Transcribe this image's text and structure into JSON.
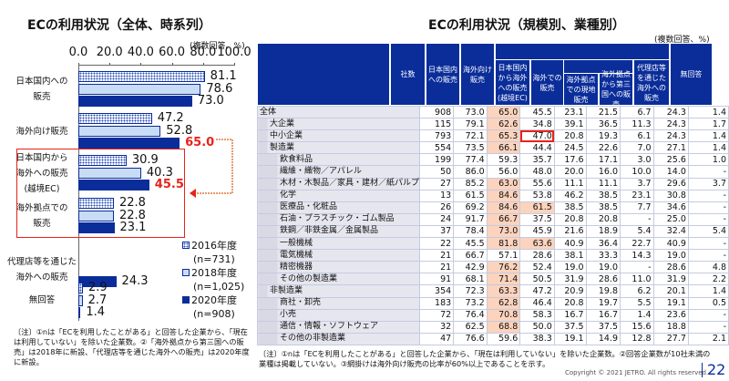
{
  "chart_data": {
    "type": "bar",
    "orientation": "horizontal",
    "title": "ECの利用状況（全体、時系列）",
    "unit_note": "(複数回答、%)",
    "xlim": [
      0,
      100
    ],
    "ticks": [
      "0.0",
      "20.0",
      "40.0",
      "60.0",
      "80.0",
      "100.0"
    ],
    "categories": [
      [
        "日本国内への",
        "販売"
      ],
      [
        "海外向け販売"
      ],
      [
        "日本国内から",
        "海外への販売",
        "(越境EC)"
      ],
      [
        "海外拠点での",
        "販売"
      ],
      [
        "代理店等を通じた",
        "海外への販売"
      ],
      [
        "無回答"
      ]
    ],
    "series": [
      {
        "name": "2016年度",
        "n": "(n=731)",
        "values": [
          81.1,
          47.2,
          30.9,
          22.8,
          null,
          2.9
        ]
      },
      {
        "name": "2018年度",
        "n": "(n=1,025)",
        "values": [
          78.6,
          52.8,
          40.3,
          22.8,
          null,
          2.7
        ]
      },
      {
        "name": "2020年度",
        "n": "(n=908)",
        "values": [
          73.0,
          65.0,
          45.5,
          23.1,
          24.3,
          1.4
        ]
      }
    ],
    "highlight_labels": [
      "65.0",
      "45.5"
    ],
    "colors": {
      "s2016": "#ffffff",
      "s2018": "#c9dcf6",
      "s2020": "#0a2d9a",
      "highlight": "#e8231a"
    }
  },
  "left_note": "〔注〕①nは「ECを利用したことがある」と回答した企業から、「現在は利用していない」を除いた企業数。②「海外拠点から第三国への販売」は2018年に新設、「代理店等を通じた海外への販売」は2020年度に新設。",
  "table": {
    "title": "ECの利用状況（規模別、業種別）",
    "unit_note": "(複数回答、%)",
    "headers": {
      "count": "社数",
      "domestic": "日本国内への販売",
      "overseas": "海外向け販売",
      "crossborder": "日本国内から海外への販売(越境EC)",
      "abroad": "海外での販売",
      "local": "海外拠点での現地販売",
      "third": "海外拠点から第三国への販売",
      "agent": "代理店等を通じた海外への販売",
      "none": "無回答"
    },
    "rows": [
      {
        "label": "全体",
        "level": 0,
        "v": [
          "908",
          "73.0",
          "65.0",
          "45.5",
          "23.1",
          "21.5",
          "6.7",
          "24.3",
          "1.4"
        ]
      },
      {
        "label": "大企業",
        "level": 1,
        "v": [
          "115",
          "79.1",
          "62.6",
          "34.8",
          "39.1",
          "36.5",
          "11.3",
          "24.3",
          "1.7"
        ]
      },
      {
        "label": "中小企業",
        "level": 1,
        "v": [
          "793",
          "72.1",
          "65.3",
          "47.0",
          "20.8",
          "19.3",
          "6.1",
          "24.3",
          "1.4"
        ],
        "boxed": 3
      },
      {
        "label": "製造業",
        "level": 1,
        "v": [
          "554",
          "73.5",
          "66.1",
          "44.4",
          "24.5",
          "22.6",
          "7.0",
          "27.1",
          "1.4"
        ]
      },
      {
        "label": "飲食料品",
        "level": 2,
        "v": [
          "199",
          "77.4",
          "59.3",
          "35.7",
          "17.6",
          "17.1",
          "3.0",
          "25.6",
          "1.0"
        ]
      },
      {
        "label": "繊維・織物／アパレル",
        "level": 2,
        "v": [
          "50",
          "86.0",
          "56.0",
          "48.0",
          "20.0",
          "16.0",
          "10.0",
          "14.0",
          "-"
        ]
      },
      {
        "label": "木材・木製品／家具・建材／紙パルプ",
        "level": 2,
        "v": [
          "27",
          "85.2",
          "63.0",
          "55.6",
          "11.1",
          "11.1",
          "3.7",
          "29.6",
          "3.7"
        ]
      },
      {
        "label": "化学",
        "level": 2,
        "v": [
          "13",
          "61.5",
          "84.6",
          "53.8",
          "46.2",
          "38.5",
          "23.1",
          "30.8",
          "-"
        ]
      },
      {
        "label": "医療品・化粧品",
        "level": 2,
        "v": [
          "26",
          "69.2",
          "84.6",
          "61.5",
          "38.5",
          "38.5",
          "7.7",
          "34.6",
          "-"
        ]
      },
      {
        "label": "石油・プラスチック・ゴム製品",
        "level": 2,
        "v": [
          "24",
          "91.7",
          "66.7",
          "37.5",
          "20.8",
          "20.8",
          "-",
          "25.0",
          "-"
        ]
      },
      {
        "label": "鉄鋼／非鉄金属／金属製品",
        "level": 2,
        "v": [
          "37",
          "78.4",
          "73.0",
          "45.9",
          "21.6",
          "18.9",
          "5.4",
          "32.4",
          "5.4"
        ]
      },
      {
        "label": "一般機械",
        "level": 2,
        "v": [
          "22",
          "45.5",
          "81.8",
          "63.6",
          "40.9",
          "36.4",
          "22.7",
          "40.9",
          "-"
        ]
      },
      {
        "label": "電気機械",
        "level": 2,
        "v": [
          "21",
          "66.7",
          "57.1",
          "28.6",
          "38.1",
          "33.3",
          "14.3",
          "19.0",
          "-"
        ]
      },
      {
        "label": "精密機器",
        "level": 2,
        "v": [
          "21",
          "42.9",
          "76.2",
          "52.4",
          "19.0",
          "19.0",
          "-",
          "28.6",
          "4.8"
        ]
      },
      {
        "label": "その他の製造業",
        "level": 2,
        "v": [
          "91",
          "68.1",
          "71.4",
          "50.5",
          "31.9",
          "28.6",
          "11.0",
          "31.9",
          "2.2"
        ]
      },
      {
        "label": "非製造業",
        "level": 1,
        "v": [
          "354",
          "72.3",
          "63.3",
          "47.2",
          "20.9",
          "19.8",
          "6.2",
          "20.1",
          "1.4"
        ]
      },
      {
        "label": "商社・卸売",
        "level": 2,
        "v": [
          "183",
          "73.2",
          "62.8",
          "46.4",
          "20.8",
          "19.7",
          "5.5",
          "19.1",
          "0.5"
        ]
      },
      {
        "label": "小売",
        "level": 2,
        "v": [
          "72",
          "76.4",
          "70.8",
          "58.3",
          "16.7",
          "16.7",
          "1.4",
          "23.6",
          "-"
        ]
      },
      {
        "label": "通信・情報・ソフトウェア",
        "level": 2,
        "v": [
          "32",
          "62.5",
          "68.8",
          "50.0",
          "37.5",
          "37.5",
          "15.6",
          "18.8",
          "-"
        ]
      },
      {
        "label": "その他の非製造業",
        "level": 2,
        "v": [
          "47",
          "76.6",
          "59.6",
          "38.3",
          "19.1",
          "14.9",
          "12.8",
          "27.7",
          "2.1"
        ]
      }
    ],
    "highlight_threshold": 60,
    "note": "〔注〕①nは「ECを利用したことがある」と回答した企業から、「現在は利用していない」を除いた企業数。②回答企業数が10社未満の業種は掲載していない。③網掛けは海外向け販売の比率が60%以上であることを示す。"
  },
  "footer": {
    "copyright": "Copyright © 2021 JETRO. All rights reserved.",
    "page": "22"
  }
}
